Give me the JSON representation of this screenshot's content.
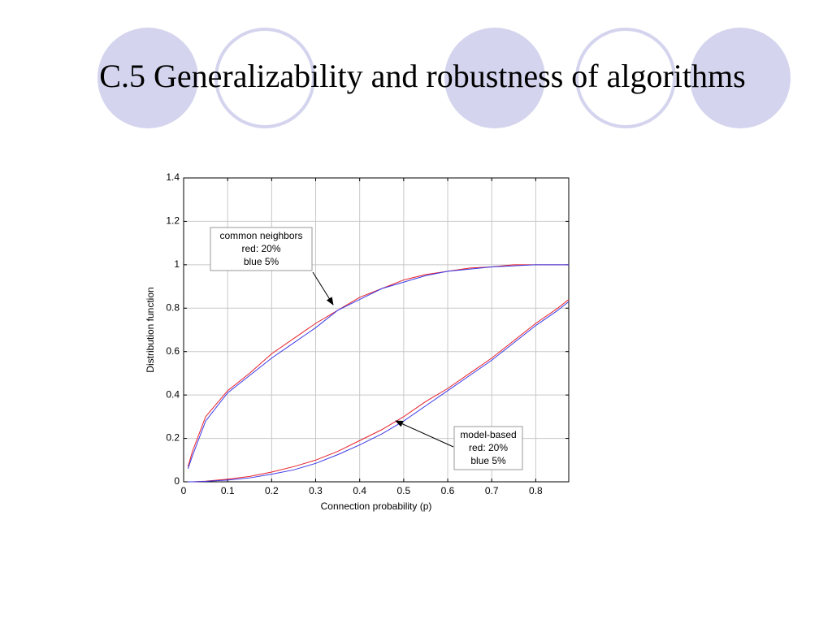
{
  "slide": {
    "title": "C.5 Generalizability and robustness of algorithms"
  },
  "chart_data": {
    "type": "line",
    "xlabel": "Connection probability (p)",
    "ylabel": "Distribution function",
    "x": [
      0.01,
      0.02,
      0.05,
      0.1,
      0.15,
      0.2,
      0.25,
      0.3,
      0.35,
      0.4,
      0.45,
      0.5,
      0.55,
      0.6,
      0.65,
      0.7,
      0.75,
      0.8,
      0.85,
      0.875
    ],
    "series": [
      {
        "color": "#e8202a",
        "values": [
          0.07,
          0.14,
          0.3,
          0.42,
          0.5,
          0.59,
          0.66,
          0.73,
          0.79,
          0.85,
          0.89,
          0.93,
          0.955,
          0.97,
          0.985,
          0.99,
          1.0,
          1.0,
          1.0,
          1.0
        ]
      },
      {
        "color": "#3a3ae8",
        "values": [
          0.06,
          0.12,
          0.28,
          0.41,
          0.49,
          0.57,
          0.64,
          0.71,
          0.79,
          0.84,
          0.89,
          0.92,
          0.95,
          0.97,
          0.98,
          0.99,
          0.995,
          1.0,
          1.0,
          1.0
        ]
      },
      {
        "color": "#e8202a",
        "values": [
          0.0,
          0.0,
          0.003,
          0.012,
          0.025,
          0.045,
          0.07,
          0.1,
          0.14,
          0.19,
          0.24,
          0.3,
          0.37,
          0.43,
          0.5,
          0.57,
          0.65,
          0.73,
          0.8,
          0.84
        ]
      },
      {
        "color": "#3a3ae8",
        "values": [
          0.0,
          0.0,
          0.002,
          0.008,
          0.018,
          0.035,
          0.055,
          0.085,
          0.125,
          0.17,
          0.22,
          0.28,
          0.35,
          0.42,
          0.49,
          0.56,
          0.64,
          0.72,
          0.79,
          0.83
        ]
      }
    ],
    "annotations": [
      {
        "lines": [
          "common neighbors",
          "red: 20%",
          "blue 5%"
        ]
      },
      {
        "lines": [
          "model-based",
          "red: 20%",
          "blue 5%"
        ]
      }
    ],
    "xlim": [
      0,
      0.875
    ],
    "xticks": [
      0,
      0.1,
      0.2,
      0.3,
      0.4,
      0.5,
      0.6,
      0.7,
      0.8
    ],
    "ylim": [
      0,
      1.4
    ],
    "yticks": [
      0,
      0.2,
      0.4,
      0.6,
      0.8,
      1,
      1.2,
      1.4
    ],
    "grid": true
  }
}
